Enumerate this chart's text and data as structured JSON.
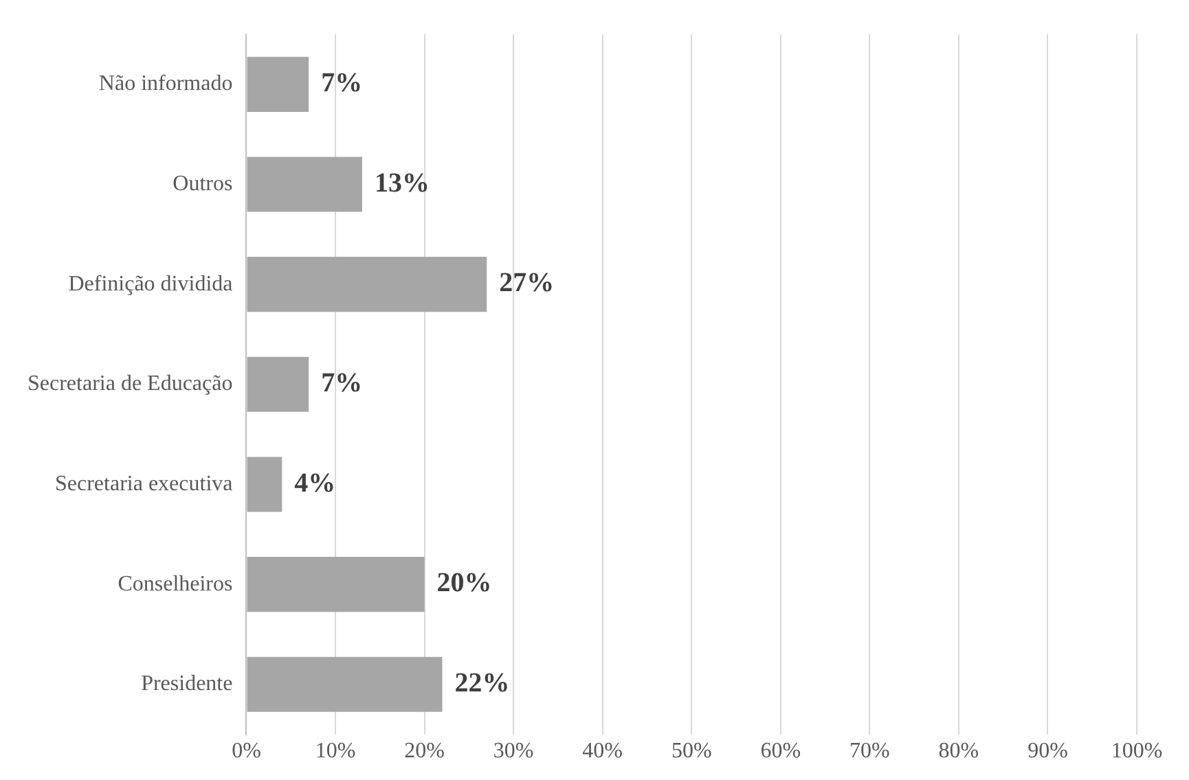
{
  "chart_data": {
    "type": "bar",
    "orientation": "horizontal",
    "categories": [
      "Não informado",
      "Outros",
      "Definição dividida",
      "Secretaria de Educação",
      "Secretaria executiva",
      "Conselheiros",
      "Presidente"
    ],
    "values": [
      7,
      13,
      27,
      7,
      4,
      20,
      22
    ],
    "value_labels": [
      "7%",
      "13%",
      "27%",
      "7%",
      "4%",
      "20%",
      "22%"
    ],
    "color": "#a6a6a6",
    "xlim": [
      0,
      100
    ],
    "xticks": [
      {
        "value": 0,
        "label": "0%"
      },
      {
        "value": 10,
        "label": "10%"
      },
      {
        "value": 20,
        "label": "20%"
      },
      {
        "value": 30,
        "label": "30%"
      },
      {
        "value": 40,
        "label": "40%"
      },
      {
        "value": 50,
        "label": "50%"
      },
      {
        "value": 60,
        "label": "60%"
      },
      {
        "value": 70,
        "label": "70%"
      },
      {
        "value": 80,
        "label": "80%"
      },
      {
        "value": 90,
        "label": "90%"
      },
      {
        "value": 100,
        "label": "100%"
      }
    ],
    "grid": "x"
  }
}
